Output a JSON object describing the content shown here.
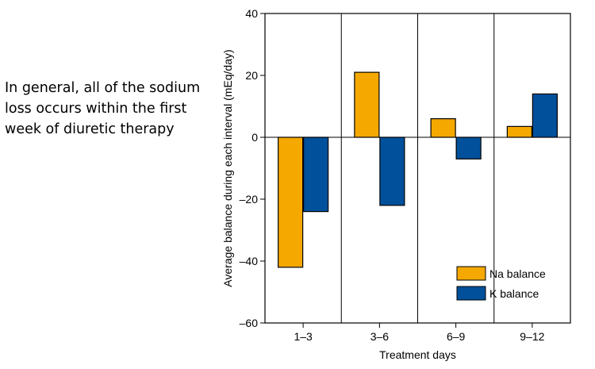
{
  "caption": {
    "lines": [
      "In general, all of the sodium",
      "loss occurs within the first",
      "week of diuretic therapy"
    ]
  },
  "chart_data": {
    "type": "bar",
    "title": "",
    "xlabel": "Treatment days",
    "ylabel": "Average balance during each interval (mEq/day)",
    "categories": [
      "1–3",
      "3–6",
      "6–9",
      "9–12"
    ],
    "ylim": [
      -60,
      40
    ],
    "yticks": [
      40,
      20,
      0,
      -20,
      -40,
      -60
    ],
    "ytick_labels": [
      "40",
      "20",
      "0",
      "–20",
      "–40",
      "–60"
    ],
    "series": [
      {
        "name": "Na balance",
        "color": "#F5A800",
        "values": [
          -42,
          21,
          6,
          3.5
        ]
      },
      {
        "name": "K balance",
        "color": "#00509B",
        "values": [
          -24,
          -22,
          -7,
          14
        ]
      }
    ],
    "grid": false,
    "category_separators": true,
    "legend": "bottom-right"
  }
}
